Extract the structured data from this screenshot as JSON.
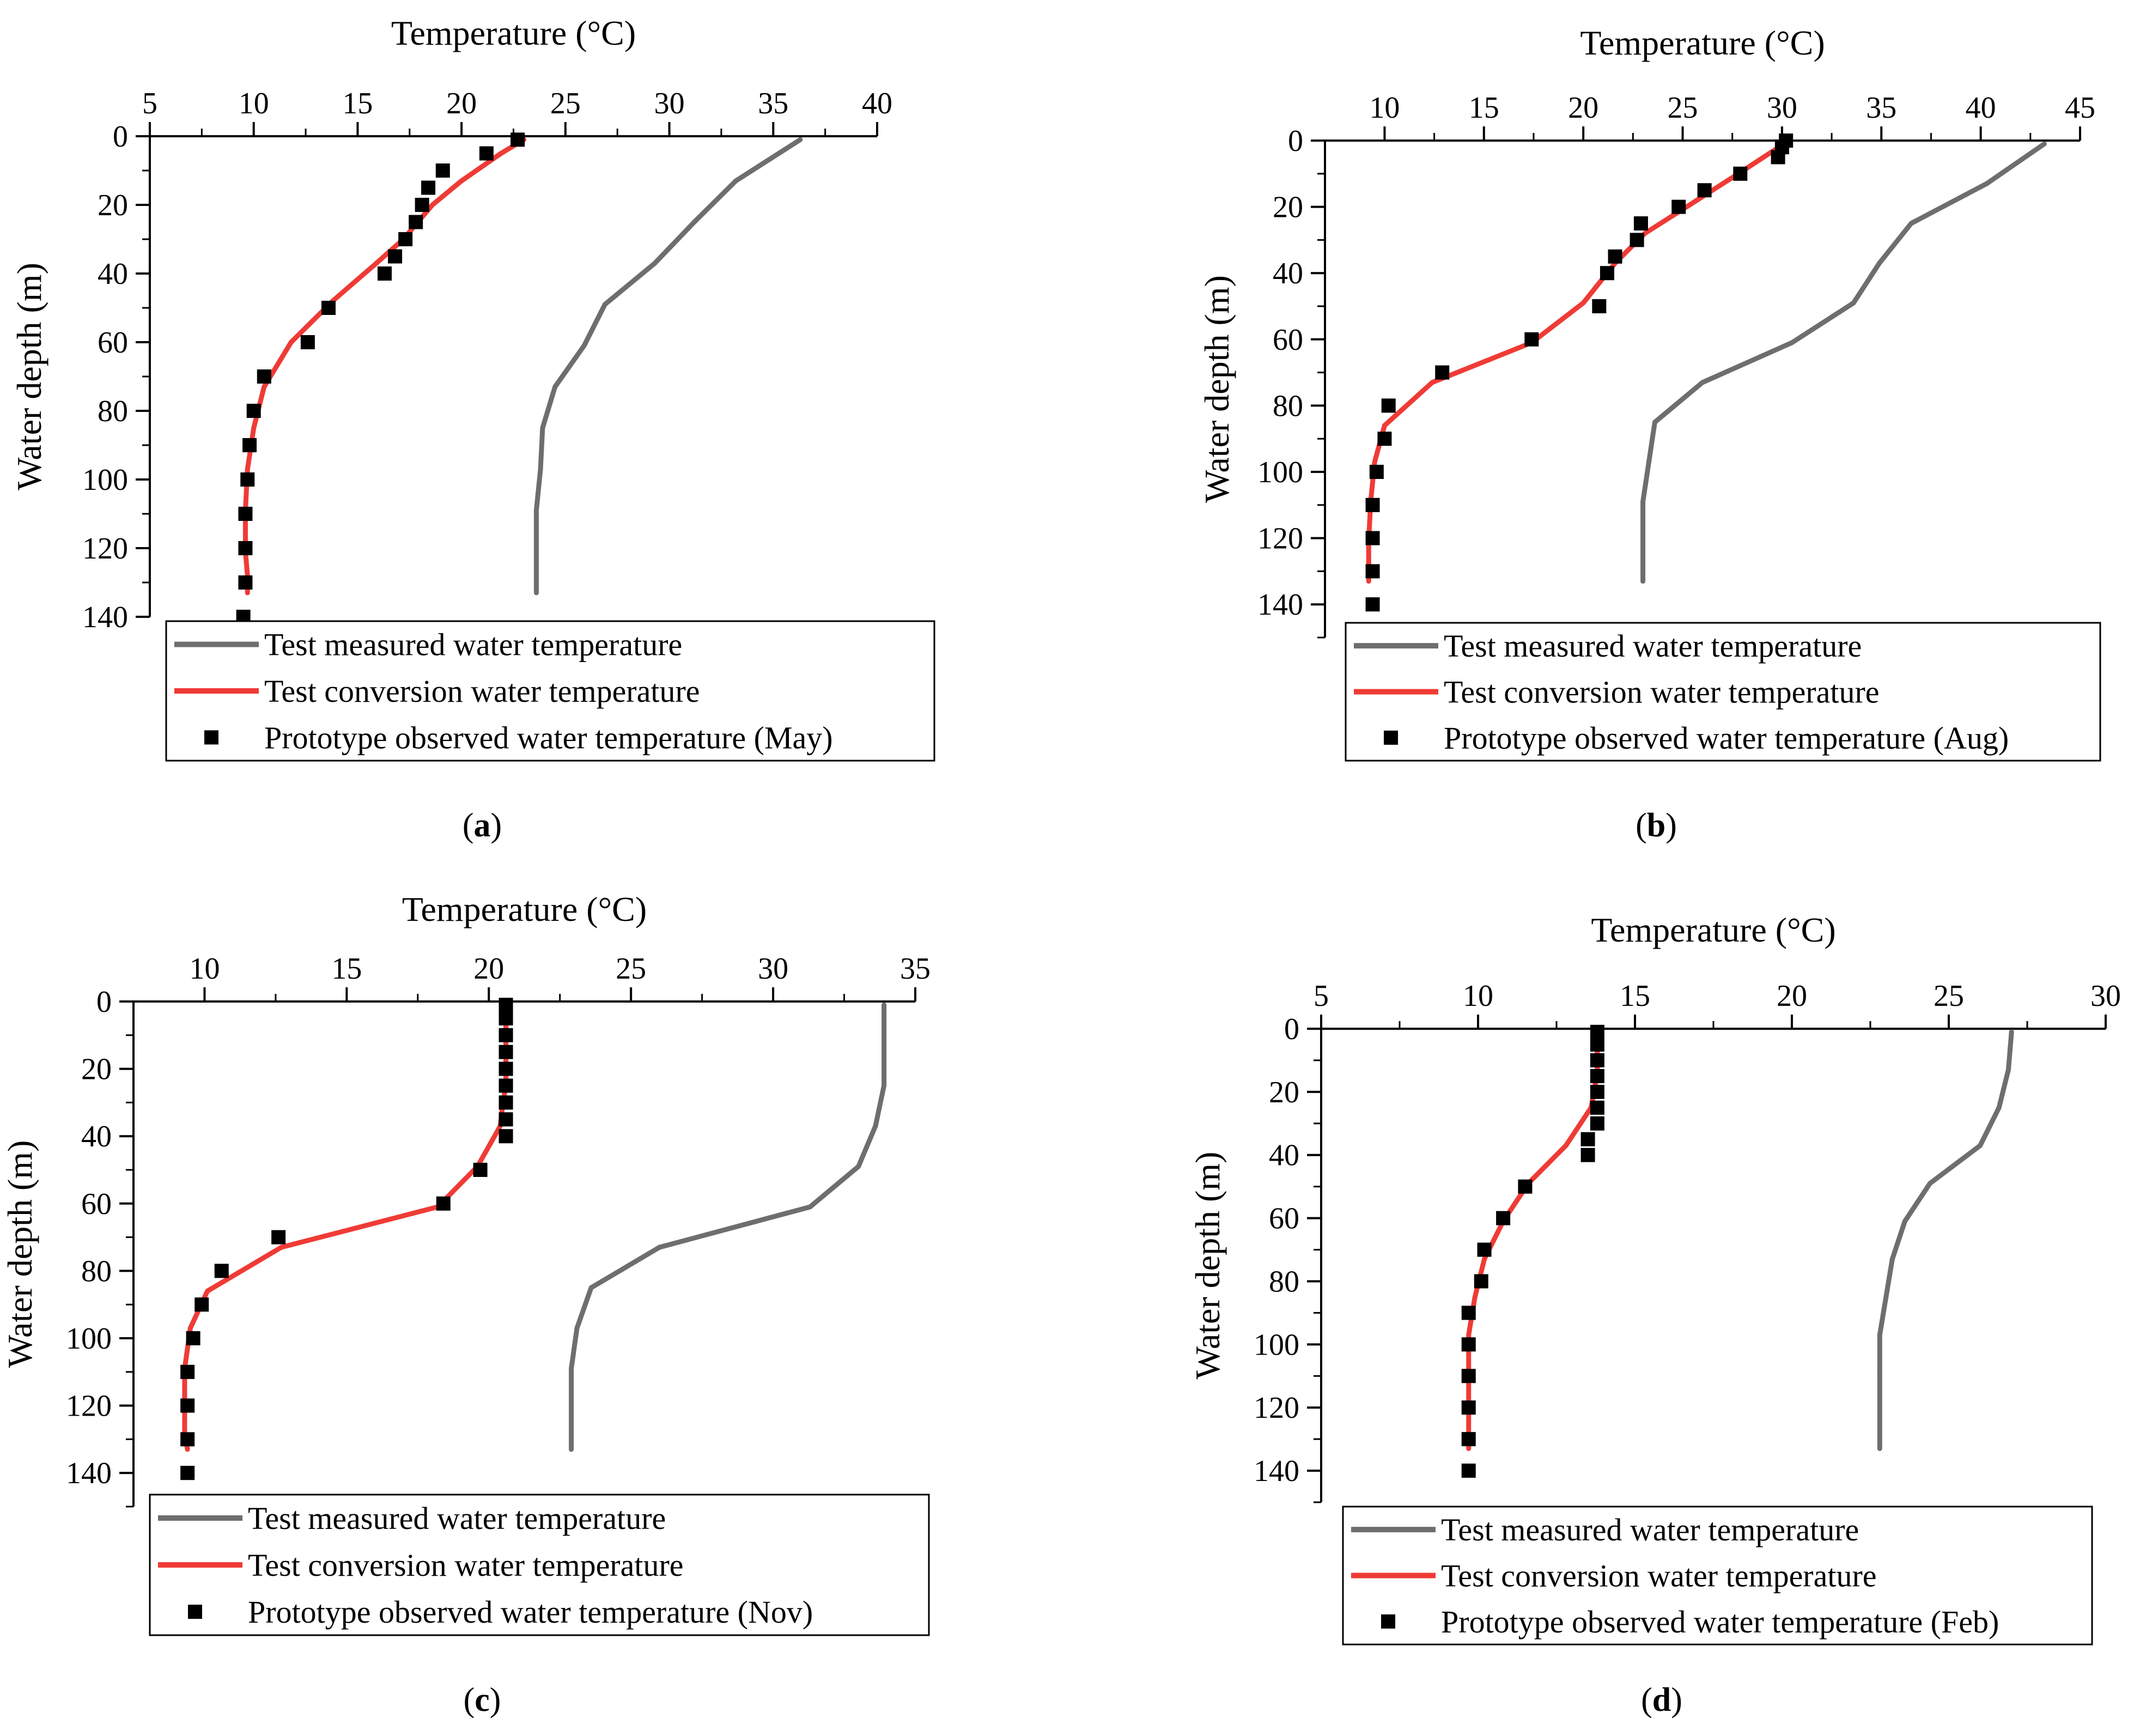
{
  "colors": {
    "measured": "#6e6e6e",
    "conversion": "#ef3b36",
    "observed": "#000000",
    "axis": "#000000"
  },
  "chart_data": [
    {
      "panel": "a",
      "type": "line",
      "panel_label": {
        "open": "(",
        "letter": "a",
        "close": ")"
      },
      "xlabel": "Temperature (°C)",
      "ylabel": "Water depth (m)",
      "xlim": [
        5,
        40
      ],
      "ylim": [
        0,
        140
      ],
      "xticks": [
        5,
        10,
        15,
        20,
        25,
        30,
        35,
        40
      ],
      "yticks": [
        0,
        20,
        40,
        60,
        80,
        100,
        120,
        140
      ],
      "legend_position": "bottom",
      "legend": [
        "Test measured water temperature",
        "Test conversion water temperature",
        "Prototype observed water temperature (May)"
      ],
      "series": [
        {
          "name": "Test measured water temperature",
          "kind": "line",
          "color_key": "measured",
          "x": [
            36.3,
            33.2,
            31.2,
            29.3,
            26.9,
            25.9,
            24.5,
            23.9,
            23.8,
            23.6,
            23.6
          ],
          "y": [
            1,
            13,
            25,
            37,
            49,
            61,
            73,
            85,
            97,
            109,
            133
          ]
        },
        {
          "name": "Test conversion water temperature",
          "kind": "line",
          "color_key": "conversion",
          "x": [
            23.0,
            21.9,
            20.0,
            18.6,
            17.2,
            15.9,
            13.8,
            11.8,
            10.5,
            10.0,
            9.7,
            9.6,
            9.6,
            9.7,
            9.7
          ],
          "y": [
            1,
            5,
            13,
            20,
            30,
            37,
            48,
            60,
            73,
            85,
            97,
            109,
            121,
            128,
            133
          ]
        },
        {
          "name": "Prototype observed water temperature (May)",
          "kind": "scatter",
          "color_key": "observed",
          "x": [
            22.7,
            21.2,
            19.1,
            18.4,
            18.1,
            17.8,
            17.3,
            16.8,
            16.3,
            13.6,
            12.6,
            10.5,
            10.0,
            9.8,
            9.7,
            9.6,
            9.6,
            9.6,
            9.5
          ],
          "y": [
            1,
            5,
            10,
            15,
            20,
            25,
            30,
            35,
            40,
            50,
            60,
            70,
            80,
            90,
            100,
            110,
            120,
            130,
            140
          ]
        }
      ]
    },
    {
      "panel": "b",
      "type": "line",
      "panel_label": {
        "open": "(",
        "letter": "b",
        "close": ")"
      },
      "xlabel": "Temperature (°C)",
      "ylabel": "Water depth (m)",
      "xlim": [
        7,
        45
      ],
      "ylim": [
        0,
        150
      ],
      "xticks": [
        10,
        15,
        20,
        25,
        30,
        35,
        40,
        45
      ],
      "yticks": [
        0,
        20,
        40,
        60,
        80,
        100,
        120,
        140
      ],
      "legend_position": "bottom",
      "legend": [
        "Test measured water temperature",
        "Test conversion water temperature",
        "Prototype observed water temperature (Aug)"
      ],
      "series": [
        {
          "name": "Test measured water temperature",
          "kind": "line",
          "color_key": "measured",
          "x": [
            43.2,
            40.3,
            36.5,
            34.9,
            33.6,
            30.5,
            26.0,
            23.6,
            23.3,
            23.0,
            23.0,
            23.0
          ],
          "y": [
            1,
            13,
            25,
            37,
            49,
            61,
            73,
            85,
            97,
            109,
            121,
            133
          ]
        },
        {
          "name": "Test conversion water temperature",
          "kind": "line",
          "color_key": "conversion",
          "x": [
            30.1,
            27.8,
            25.2,
            23.1,
            21.6,
            20.0,
            17.4,
            12.4,
            10.0,
            9.5,
            9.3,
            9.2,
            9.2
          ],
          "y": [
            1,
            10,
            20,
            28,
            37,
            49,
            61,
            73,
            86,
            97,
            109,
            121,
            133
          ]
        },
        {
          "name": "Prototype observed water temperature (Aug)",
          "kind": "scatter",
          "color_key": "observed",
          "x": [
            30.2,
            30.0,
            29.8,
            27.9,
            26.1,
            24.8,
            22.9,
            22.7,
            21.6,
            21.2,
            20.8,
            17.4,
            12.9,
            10.2,
            10.0,
            9.6,
            9.4,
            9.4,
            9.4,
            9.4
          ],
          "y": [
            0,
            2,
            5,
            10,
            15,
            20,
            25,
            30,
            35,
            40,
            50,
            60,
            70,
            80,
            90,
            100,
            110,
            120,
            130,
            140
          ]
        }
      ]
    },
    {
      "panel": "c",
      "type": "line",
      "panel_label": {
        "open": "(",
        "letter": "c",
        "close": ")"
      },
      "xlabel": "Temperature (°C)",
      "ylabel": "Water depth (m)",
      "xlim": [
        7.5,
        35
      ],
      "ylim": [
        0,
        150
      ],
      "xticks": [
        10,
        15,
        20,
        25,
        30,
        35
      ],
      "yticks": [
        0,
        20,
        40,
        60,
        80,
        100,
        120,
        140
      ],
      "legend_position": "bottom",
      "legend": [
        "Test measured water temperature",
        "Test conversion water temperature",
        "Prototype observed water temperature (Nov)"
      ],
      "series": [
        {
          "name": "Test measured water temperature",
          "kind": "line",
          "color_key": "measured",
          "x": [
            33.9,
            33.9,
            33.9,
            33.6,
            33.0,
            31.3,
            26.0,
            23.6,
            23.1,
            22.9,
            22.9,
            22.9
          ],
          "y": [
            1,
            13,
            25,
            37,
            49,
            61,
            73,
            85,
            97,
            109,
            121,
            133
          ]
        },
        {
          "name": "Test conversion water temperature",
          "kind": "line",
          "color_key": "conversion",
          "x": [
            20.6,
            20.6,
            20.6,
            20.5,
            20.4,
            19.6,
            18.2,
            12.7,
            10.1,
            9.5,
            9.3,
            9.3,
            9.3,
            9.4
          ],
          "y": [
            1,
            13,
            25,
            30,
            37,
            49,
            61,
            73,
            86,
            97,
            109,
            121,
            128,
            133
          ]
        },
        {
          "name": "Prototype observed water temperature (Nov)",
          "kind": "scatter",
          "color_key": "observed",
          "x": [
            20.6,
            20.6,
            20.6,
            20.6,
            20.6,
            20.6,
            20.6,
            20.6,
            20.6,
            19.7,
            18.4,
            12.6,
            10.6,
            9.9,
            9.6,
            9.4,
            9.4,
            9.4,
            9.4
          ],
          "y": [
            1,
            5,
            10,
            15,
            20,
            25,
            30,
            35,
            40,
            50,
            60,
            70,
            80,
            90,
            100,
            110,
            120,
            130,
            140
          ]
        }
      ]
    },
    {
      "panel": "d",
      "type": "line",
      "panel_label": {
        "open": "(",
        "letter": "d",
        "close": ")"
      },
      "xlabel": "Temperature (°C)",
      "ylabel": "Water depth (m)",
      "xlim": [
        5,
        30
      ],
      "ylim": [
        0,
        150
      ],
      "xticks": [
        5,
        10,
        15,
        20,
        25,
        30
      ],
      "yticks": [
        0,
        20,
        40,
        60,
        80,
        100,
        120,
        140
      ],
      "legend_position": "bottom",
      "legend": [
        "Test measured water temperature",
        "Test conversion water temperature",
        "Prototype observed water temperature (Feb)"
      ],
      "series": [
        {
          "name": "Test measured water temperature",
          "kind": "line",
          "color_key": "measured",
          "x": [
            27.0,
            26.9,
            26.6,
            26.0,
            24.4,
            23.6,
            23.2,
            23.0,
            22.8,
            22.8,
            22.8
          ],
          "y": [
            1,
            13,
            25,
            37,
            49,
            61,
            73,
            85,
            97,
            109,
            133
          ]
        },
        {
          "name": "Test conversion water temperature",
          "kind": "line",
          "color_key": "conversion",
          "x": [
            13.8,
            13.8,
            13.7,
            13.6,
            12.8,
            11.6,
            10.8,
            10.2,
            9.9,
            9.7,
            9.7,
            9.7,
            9.7
          ],
          "y": [
            1,
            13,
            20,
            25,
            37,
            49,
            61,
            73,
            85,
            97,
            109,
            121,
            133
          ]
        },
        {
          "name": "Prototype observed water temperature (Feb)",
          "kind": "scatter",
          "color_key": "observed",
          "x": [
            13.8,
            13.8,
            13.8,
            13.8,
            13.8,
            13.8,
            13.8,
            13.5,
            13.5,
            11.5,
            10.8,
            10.2,
            10.1,
            9.7,
            9.7,
            9.7,
            9.7,
            9.7,
            9.7
          ],
          "y": [
            1,
            5,
            10,
            15,
            20,
            25,
            30,
            35,
            40,
            50,
            60,
            70,
            80,
            90,
            100,
            110,
            120,
            130,
            140
          ]
        }
      ]
    }
  ]
}
